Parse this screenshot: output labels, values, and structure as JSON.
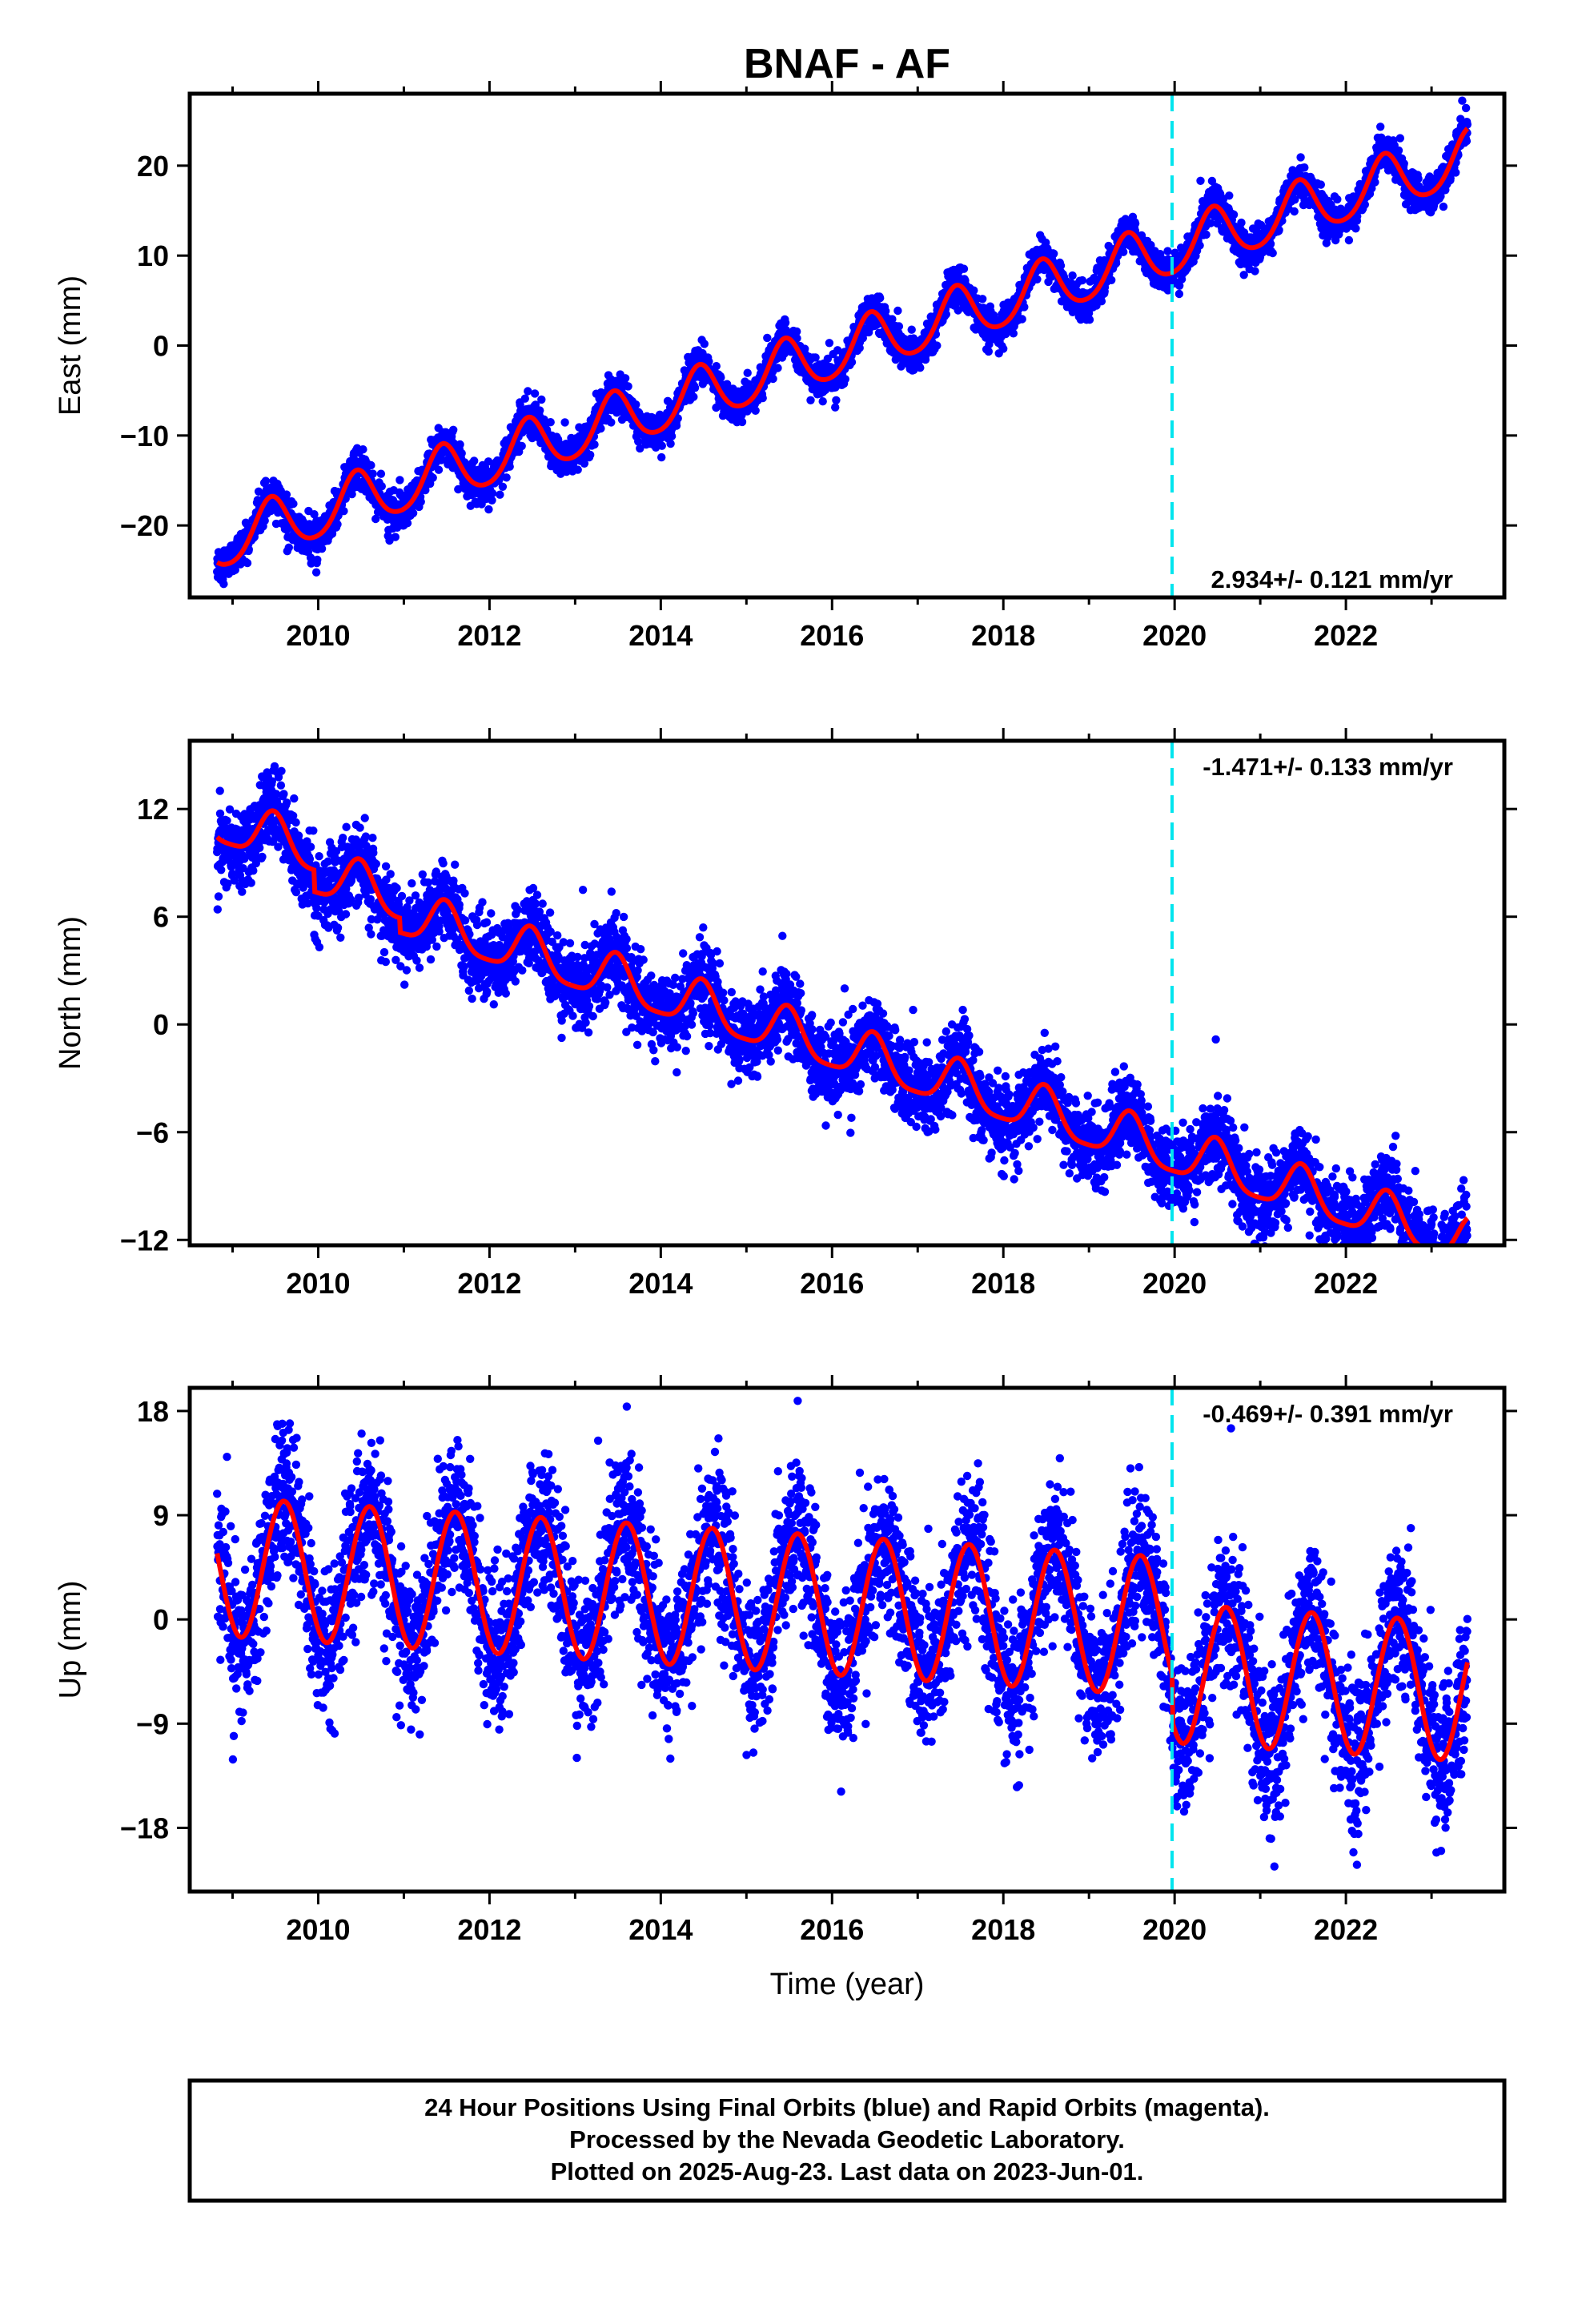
{
  "title": "BNAF - AF",
  "xlabel": "Time (year)",
  "colors": {
    "points": "#0000ff",
    "model": "#ff0000",
    "event_line": "#00e5ee",
    "axis": "#000000"
  },
  "footer": {
    "line1": "24 Hour Positions Using Final Orbits (blue) and Rapid Orbits (magenta).",
    "line2": "Processed by the Nevada Geodetic Laboratory.",
    "line3": "Plotted on 2025-Aug-23. Last data on 2023-Jun-01."
  },
  "chart_data": [
    {
      "type": "scatter",
      "component": "East",
      "ylabel": "East (mm)",
      "rate_label": "2.934+/- 0.121 mm/yr",
      "rate_position": "bottom-right",
      "xlim": [
        2008.5,
        2023.85
      ],
      "ylim": [
        -28,
        28
      ],
      "yticks": [
        -20,
        -10,
        0,
        10,
        20
      ],
      "xticks": [
        2010,
        2012,
        2014,
        2016,
        2018,
        2020,
        2022
      ],
      "event_line_x": 2019.97,
      "model": {
        "rate_mm_per_yr": 2.934,
        "rate_sigma": 0.121,
        "value_at_2009": -21.5,
        "annual_amplitude": 3.0,
        "annual_peak_month_fraction": 0.45,
        "semiannual_amplitude": 0.4,
        "offsets": [],
        "scatter_sigma": 1.0
      },
      "data_start": 2008.82,
      "data_end": 2023.42
    },
    {
      "type": "scatter",
      "component": "North",
      "ylabel": "North (mm)",
      "rate_label": "-1.471+/- 0.133 mm/yr",
      "rate_position": "top-right",
      "xlim": [
        2008.5,
        2023.85
      ],
      "ylim": [
        -12.3,
        15.8
      ],
      "yticks": [
        -12,
        -6,
        0,
        6,
        12
      ],
      "xticks": [
        2010,
        2012,
        2014,
        2016,
        2018,
        2020,
        2022
      ],
      "event_line_x": 2019.97,
      "model": {
        "rate_mm_per_yr": -1.471,
        "rate_sigma": 0.133,
        "value_at_2009": 11.0,
        "annual_amplitude": 1.3,
        "annual_peak_month_fraction": 0.48,
        "semiannual_amplitude": 0.3,
        "offsets": [
          {
            "t": 2009.95,
            "d": -1.2
          },
          {
            "t": 2010.95,
            "d": -0.8
          }
        ],
        "scatter_sigma": 1.1
      },
      "data_start": 2008.82,
      "data_end": 2023.42
    },
    {
      "type": "scatter",
      "component": "Up",
      "ylabel": "Up (mm)",
      "rate_label": "-0.469+/- 0.391 mm/yr",
      "rate_position": "top-right",
      "xlim": [
        2008.5,
        2023.85
      ],
      "ylim": [
        -23.5,
        20
      ],
      "yticks": [
        -18,
        -9,
        0,
        9,
        18
      ],
      "xticks": [
        2010,
        2012,
        2014,
        2016,
        2018,
        2020,
        2022
      ],
      "event_line_x": 2019.97,
      "model": {
        "rate_mm_per_yr": -0.469,
        "rate_sigma": 0.391,
        "value_at_2009": 4.5,
        "annual_amplitude": 6.0,
        "annual_peak_month_fraction": 0.6,
        "semiannual_amplitude": 0.0,
        "offsets": [
          {
            "t": 2019.97,
            "d": -4.0
          }
        ],
        "scatter_sigma": 3.2
      },
      "data_start": 2008.82,
      "data_end": 2023.42
    }
  ]
}
